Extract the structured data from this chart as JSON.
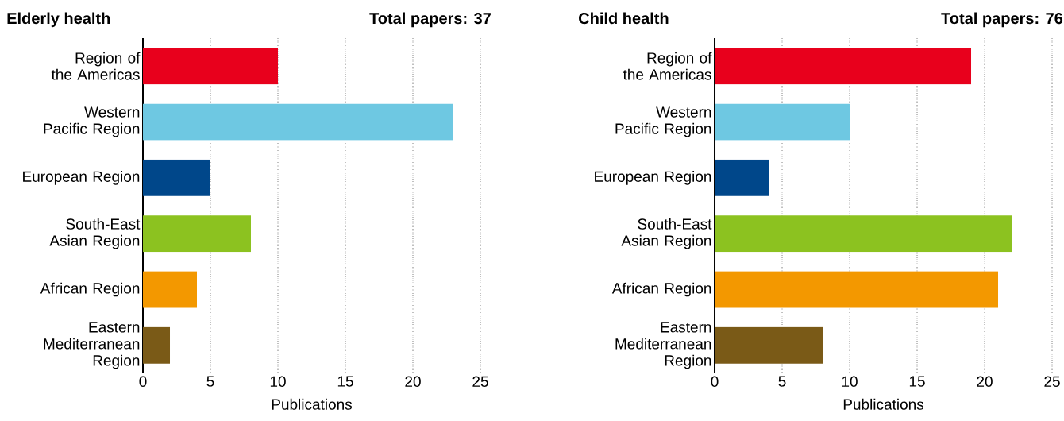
{
  "chart_data": [
    {
      "type": "bar",
      "orientation": "horizontal",
      "title": "Elderly health",
      "subtitle": "Total papers: 37",
      "xlabel": "Publications",
      "categories": [
        "Region of the Americas",
        "Western Pacific Region",
        "European Region",
        "South-East Asian Region",
        "African Region",
        "Eastern Mediterranean Region"
      ],
      "values": [
        10,
        23,
        5,
        8,
        4,
        2
      ],
      "colors": [
        "#e8001c",
        "#6ec8e2",
        "#00478a",
        "#8cc220",
        "#f39800",
        "#7a5a17"
      ],
      "xlim": [
        0,
        25
      ],
      "xticks": [
        0,
        5,
        10,
        15,
        20,
        25
      ],
      "grid": "x"
    },
    {
      "type": "bar",
      "orientation": "horizontal",
      "title": "Child health",
      "subtitle": "Total papers: 76",
      "xlabel": "Publications",
      "categories": [
        "Region of the Americas",
        "Western Pacific Region",
        "European Region",
        "South-East Asian Region",
        "African Region",
        "Eastern Mediterranean Region"
      ],
      "values": [
        19,
        10,
        4,
        22,
        21,
        8
      ],
      "colors": [
        "#e8001c",
        "#6ec8e2",
        "#00478a",
        "#8cc220",
        "#f39800",
        "#7a5a17"
      ],
      "xlim": [
        0,
        25
      ],
      "xticks": [
        0,
        5,
        10,
        15,
        20,
        25
      ],
      "grid": "x"
    }
  ]
}
